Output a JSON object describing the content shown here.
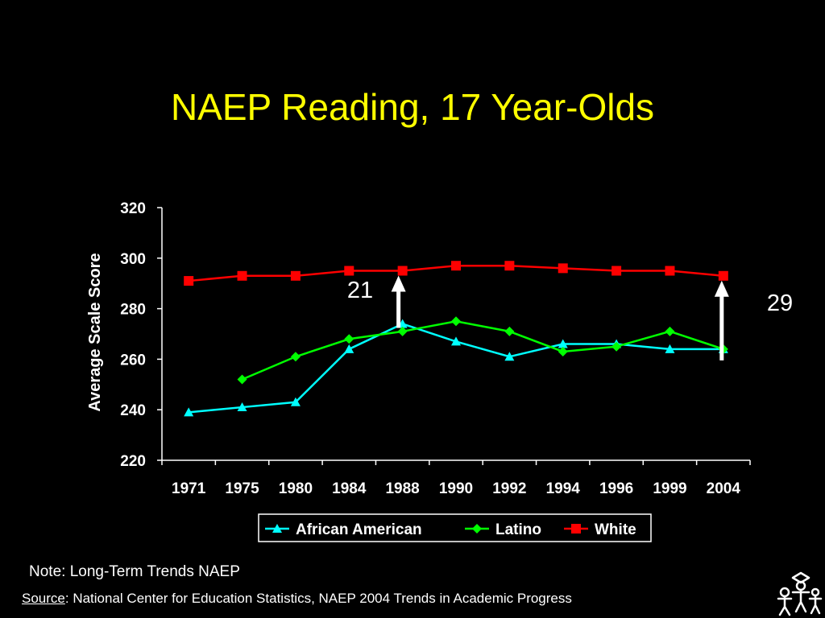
{
  "slide": {
    "title": "NAEP Reading, 17 Year-Olds",
    "note": "Note: Long-Term Trends NAEP",
    "source_label": "Source",
    "source_text": ": National Center for Education Statistics, NAEP 2004 Trends in Academic Progress"
  },
  "chart_data": {
    "type": "line",
    "title": "",
    "xlabel": "",
    "ylabel": "Average Scale Score",
    "categories": [
      "1971",
      "1975",
      "1980",
      "1984",
      "1988",
      "1990",
      "1992",
      "1994",
      "1996",
      "1999",
      "2004"
    ],
    "yticks": [
      220,
      240,
      260,
      280,
      300,
      320
    ],
    "ylim": [
      220,
      320
    ],
    "grid": false,
    "legend_position": "bottom",
    "series": [
      {
        "name": "African American",
        "color": "#00ffff",
        "marker": "triangle",
        "values": [
          239,
          241,
          243,
          264,
          274,
          267,
          261,
          266,
          266,
          264,
          264
        ]
      },
      {
        "name": "Latino",
        "color": "#00ff00",
        "marker": "diamond",
        "values": [
          null,
          252,
          261,
          268,
          271,
          275,
          271,
          263,
          265,
          271,
          264
        ]
      },
      {
        "name": "White",
        "color": "#ff0000",
        "marker": "square",
        "values": [
          291,
          293,
          293,
          295,
          295,
          297,
          297,
          296,
          295,
          295,
          293
        ]
      }
    ],
    "annotations": [
      {
        "text": "21",
        "category": "1988",
        "from": 274,
        "to": 295
      },
      {
        "text": "29",
        "category": "2004",
        "from": 264,
        "to": 293
      }
    ]
  }
}
